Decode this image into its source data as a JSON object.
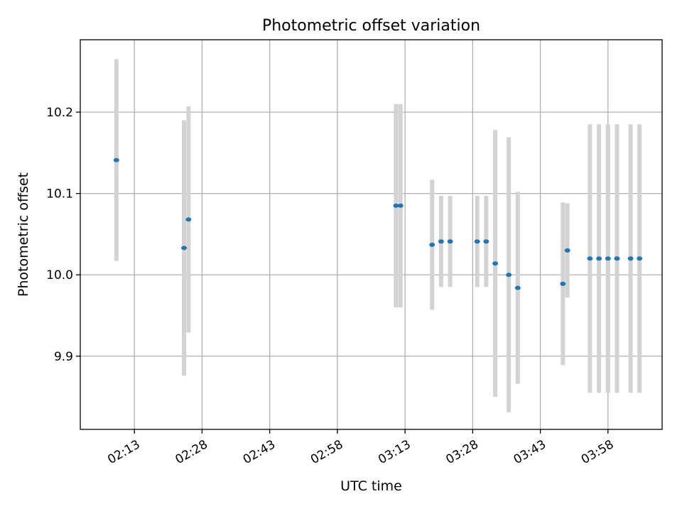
{
  "chart_data": {
    "type": "scatter",
    "title": "Photometric offset variation",
    "xlabel": "UTC time",
    "ylabel": "Photometric offset",
    "x_unit": "minutes",
    "xlim": [
      "02:01",
      "04:10"
    ],
    "ylim": [
      9.81,
      10.289
    ],
    "x_ticks": [
      "02:13",
      "02:28",
      "02:43",
      "02:58",
      "03:13",
      "03:28",
      "03:43",
      "03:58"
    ],
    "y_ticks": [
      "9.9",
      "10.0",
      "10.1",
      "10.2"
    ],
    "grid": true,
    "legend": "none",
    "errorbar_color": "#d3d3d3",
    "marker_color": "#1f77b4",
    "points": [
      {
        "t": "02:09",
        "y": 10.141,
        "err": 0.124
      },
      {
        "t": "02:24",
        "y": 10.033,
        "err": 0.157
      },
      {
        "t": "02:25",
        "y": 10.068,
        "err": 0.139
      },
      {
        "t": "03:11",
        "y": 10.085,
        "err": 0.125
      },
      {
        "t": "03:12",
        "y": 10.085,
        "err": 0.125
      },
      {
        "t": "03:19",
        "y": 10.037,
        "err": 0.08
      },
      {
        "t": "03:21",
        "y": 10.041,
        "err": 0.056
      },
      {
        "t": "03:23",
        "y": 10.041,
        "err": 0.056
      },
      {
        "t": "03:29",
        "y": 10.041,
        "err": 0.056
      },
      {
        "t": "03:31",
        "y": 10.041,
        "err": 0.056
      },
      {
        "t": "03:33",
        "y": 10.014,
        "err": 0.164
      },
      {
        "t": "03:36",
        "y": 10.0,
        "err": 0.169
      },
      {
        "t": "03:38",
        "y": 9.984,
        "err": 0.118
      },
      {
        "t": "03:48",
        "y": 9.989,
        "err": 0.1
      },
      {
        "t": "03:49",
        "y": 10.03,
        "err": 0.058
      },
      {
        "t": "03:54",
        "y": 10.02,
        "err": 0.165
      },
      {
        "t": "03:56",
        "y": 10.02,
        "err": 0.165
      },
      {
        "t": "03:58",
        "y": 10.02,
        "err": 0.165
      },
      {
        "t": "04:00",
        "y": 10.02,
        "err": 0.165
      },
      {
        "t": "04:00",
        "y": 10.02,
        "err": 0.165
      },
      {
        "t": "04:03",
        "y": 10.02,
        "err": 0.165
      },
      {
        "t": "04:05",
        "y": 10.02,
        "err": 0.165
      }
    ]
  }
}
